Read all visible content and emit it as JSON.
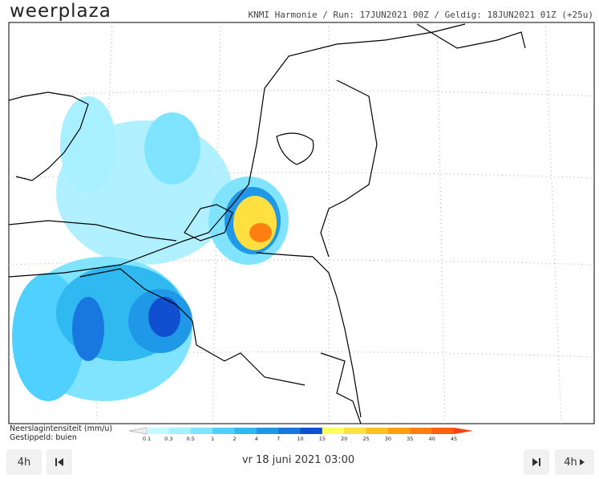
{
  "header": {
    "logo": "weerplaza",
    "info": "KNMI Harmonie / Run: 17JUN2021 00Z / Geldig: 18JUN2021 01Z (+25u)"
  },
  "legend": {
    "title": "Neerslagintensiteit (mm/u)",
    "subtitle": "Gestippeld: buien",
    "labels": [
      0.1,
      0.3,
      0.5,
      1,
      2,
      4,
      7,
      10,
      15,
      20,
      25,
      30,
      35,
      40,
      45
    ],
    "colors": [
      "#c8f8ff",
      "#a8f0ff",
      "#80e4ff",
      "#50d0ff",
      "#30b8f0",
      "#2098e8",
      "#1878e0",
      "#1050d0",
      "#ffff60",
      "#ffe040",
      "#ffc020",
      "#ffa010",
      "#ff8010",
      "#ff6010"
    ]
  },
  "controls": {
    "back": "4h",
    "time": "vr 18 juni 2021 03:00",
    "forward": "4h"
  }
}
